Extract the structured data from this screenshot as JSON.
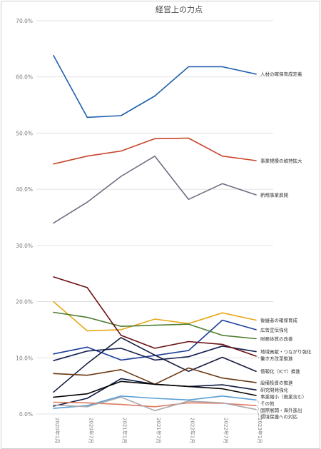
{
  "chart_data": {
    "type": "line",
    "title": "経営上の力点",
    "xlabel": "",
    "ylabel": "",
    "ylim": [
      0,
      70
    ],
    "yticks": [
      "0.0%",
      "10.0%",
      "20.0%",
      "30.0%",
      "40.0%",
      "50.0%",
      "60.0%",
      "70.0%"
    ],
    "categories": [
      "2020年1月",
      "2020年7月",
      "2021年1月",
      "2021年7月",
      "2022年1月",
      "2022年7月",
      "2023年1月"
    ],
    "grid": true,
    "legend": "inline-right",
    "series": [
      {
        "name": "人材の確保育成定着",
        "color": "#1f5fad",
        "values": [
          63.8,
          52.8,
          53.1,
          56.6,
          61.8,
          61.8,
          60.5
        ]
      },
      {
        "name": "事業規模の維持拡大",
        "color": "#c8452c",
        "values": [
          44.5,
          45.9,
          46.8,
          49.0,
          49.1,
          45.9,
          45.1
        ]
      },
      {
        "name": "新規事業展開",
        "color": "#6e6e80",
        "values": [
          34.0,
          37.7,
          42.3,
          45.9,
          38.2,
          41.0,
          39.0
        ]
      },
      {
        "name": "後継者の確保育成",
        "color": "#e8a71a",
        "values": [
          20.0,
          14.8,
          15.0,
          16.9,
          16.1,
          18.0,
          16.7
        ]
      },
      {
        "name": "広告宣伝強化",
        "color": "#1e3f9a",
        "values": [
          10.7,
          11.9,
          9.6,
          10.4,
          11.3,
          16.7,
          15.0
        ]
      },
      {
        "name": "財務体質の改善",
        "color": "#4f7d32",
        "values": [
          18.1,
          17.2,
          15.6,
          15.8,
          16.0,
          14.0,
          13.4
        ]
      },
      {
        "name": "地域貢献・つながり強化",
        "color": "#17224f",
        "values": [
          9.5,
          11.2,
          11.7,
          9.6,
          10.2,
          12.1,
          11.1
        ]
      },
      {
        "name": "働き方改革推進",
        "color": "#6b0f12",
        "values": [
          24.4,
          22.5,
          14.0,
          11.7,
          12.9,
          12.4,
          10.3
        ]
      },
      {
        "name": "情報化（ICT）推進",
        "color": "#141a3f",
        "values": [
          3.9,
          9.0,
          13.6,
          10.5,
          7.6,
          10.1,
          7.6
        ]
      },
      {
        "name": "設備投資の推進",
        "color": "#6a3812",
        "values": [
          7.2,
          6.9,
          7.9,
          5.3,
          8.2,
          6.4,
          5.6
        ]
      },
      {
        "name": "研究開発強化",
        "color": "#0f1b45",
        "values": [
          1.4,
          2.8,
          6.3,
          5.3,
          4.9,
          5.2,
          4.3
        ]
      },
      {
        "name": "事業縮小（廃業含む）",
        "color": "#050505",
        "values": [
          3.0,
          3.6,
          5.8,
          5.3,
          4.9,
          4.5,
          3.3
        ]
      },
      {
        "name": "その他",
        "color": "#5a9fd4",
        "values": [
          1.0,
          1.5,
          3.2,
          2.8,
          2.5,
          3.2,
          2.5
        ]
      },
      {
        "name": "国際展開・海外進出",
        "color": "#e07a5f",
        "values": [
          2.1,
          2.0,
          1.7,
          1.3,
          2.0,
          1.9,
          1.5
        ]
      },
      {
        "name": "環境保護への対応",
        "color": "#a9a9b0",
        "values": [
          1.6,
          1.3,
          3.0,
          0.6,
          2.3,
          2.0,
          0.8
        ]
      }
    ]
  }
}
